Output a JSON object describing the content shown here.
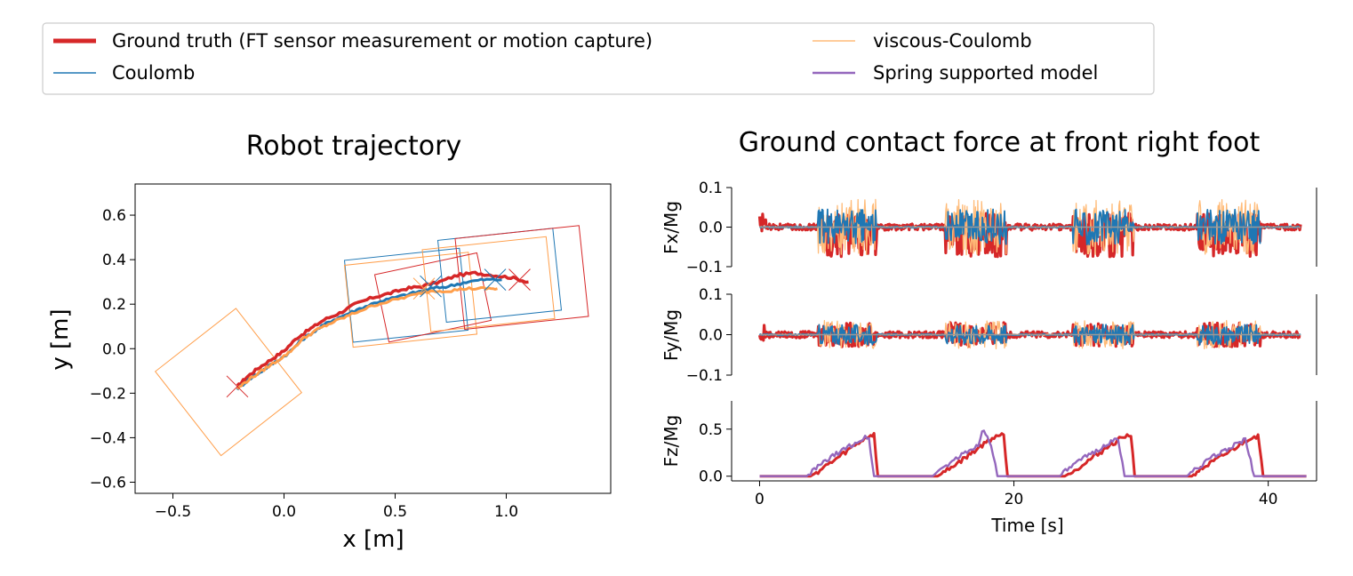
{
  "legend": {
    "entries": [
      {
        "key": "gt",
        "label": "Ground truth (FT sensor measurement or motion capture)",
        "color": "#d62728"
      },
      {
        "key": "coulomb",
        "label": "Coulomb",
        "color": "#1f77b4"
      },
      {
        "key": "vc",
        "label": "viscous-Coulomb",
        "color": "#ffbb78"
      },
      {
        "key": "spring",
        "label": "Spring supported model",
        "color": "#9467bd"
      }
    ]
  },
  "chart_data": [
    {
      "type": "line",
      "title": "Robot trajectory",
      "xlabel": "x [m]",
      "ylabel": "y [m]",
      "xlim": [
        -0.67,
        1.47
      ],
      "ylim": [
        -0.65,
        0.74
      ],
      "xticks": [
        -0.5,
        0.0,
        0.5,
        1.0
      ],
      "xtick_labels": [
        "−0.5",
        "0.0",
        "0.5",
        "1.0"
      ],
      "yticks": [
        -0.6,
        -0.4,
        -0.2,
        0.0,
        0.2,
        0.4,
        0.6
      ],
      "ytick_labels": [
        "−0.6",
        "−0.4",
        "−0.2",
        "0.0",
        "0.2",
        "0.4",
        "0.6"
      ],
      "series": [
        {
          "name": "Ground truth",
          "color": "#d62728",
          "x": [
            -0.21,
            -0.17,
            -0.12,
            -0.06,
            0.0,
            0.06,
            0.12,
            0.18,
            0.25,
            0.32,
            0.4,
            0.48,
            0.55,
            0.62,
            0.7,
            0.78,
            0.86,
            0.94,
            1.02,
            1.1
          ],
          "y": [
            -0.17,
            -0.13,
            -0.09,
            -0.05,
            -0.01,
            0.05,
            0.09,
            0.13,
            0.16,
            0.2,
            0.23,
            0.25,
            0.27,
            0.28,
            0.3,
            0.33,
            0.34,
            0.33,
            0.32,
            0.3
          ]
        },
        {
          "name": "Coulomb",
          "color": "#1f77b4",
          "x": [
            -0.21,
            -0.16,
            -0.1,
            -0.04,
            0.02,
            0.08,
            0.14,
            0.2,
            0.27,
            0.34,
            0.42,
            0.5,
            0.58,
            0.66,
            0.74,
            0.82,
            0.9,
            0.98
          ],
          "y": [
            -0.18,
            -0.14,
            -0.1,
            -0.06,
            -0.02,
            0.04,
            0.08,
            0.12,
            0.15,
            0.18,
            0.21,
            0.23,
            0.25,
            0.27,
            0.28,
            0.3,
            0.31,
            0.31
          ]
        },
        {
          "name": "viscous-Coulomb",
          "color": "#ff9e4a",
          "x": [
            -0.21,
            -0.16,
            -0.1,
            -0.04,
            0.02,
            0.08,
            0.14,
            0.2,
            0.27,
            0.34,
            0.42,
            0.5,
            0.58,
            0.66,
            0.74,
            0.82,
            0.9,
            0.96
          ],
          "y": [
            -0.18,
            -0.14,
            -0.1,
            -0.06,
            -0.02,
            0.04,
            0.08,
            0.11,
            0.14,
            0.17,
            0.2,
            0.22,
            0.24,
            0.26,
            0.26,
            0.27,
            0.27,
            0.27
          ]
        }
      ],
      "footprints": [
        {
          "color": "#ff9e4a",
          "cx": -0.25,
          "cy": -0.15,
          "w": 0.46,
          "h": 0.48,
          "angle_deg": 38
        },
        {
          "color": "#1f77b4",
          "cx": 0.55,
          "cy": 0.24,
          "w": 0.52,
          "h": 0.37,
          "angle_deg": 6
        },
        {
          "color": "#ff9e4a",
          "cx": 0.57,
          "cy": 0.22,
          "w": 0.56,
          "h": 0.37,
          "angle_deg": 6
        },
        {
          "color": "#d62728",
          "cx": 0.67,
          "cy": 0.23,
          "w": 0.47,
          "h": 0.31,
          "angle_deg": 12
        },
        {
          "color": "#1f77b4",
          "cx": 0.97,
          "cy": 0.33,
          "w": 0.52,
          "h": 0.37,
          "angle_deg": 6
        },
        {
          "color": "#ff9e4a",
          "cx": 0.92,
          "cy": 0.29,
          "w": 0.56,
          "h": 0.37,
          "angle_deg": 6
        },
        {
          "color": "#d62728",
          "cx": 1.07,
          "cy": 0.32,
          "w": 0.56,
          "h": 0.41,
          "angle_deg": 6
        }
      ]
    },
    {
      "type": "line",
      "title": "Ground contact force at front right foot",
      "xlabel": "Time [s]",
      "xticks": [
        0,
        20,
        40
      ],
      "xtick_labels": [
        "0",
        "20",
        "40"
      ],
      "xlim": [
        -2.2,
        43.8
      ],
      "stance_intervals": [
        [
          4.6,
          9.2
        ],
        [
          14.6,
          19.4
        ],
        [
          24.6,
          29.4
        ],
        [
          34.4,
          39.4
        ]
      ],
      "panels": [
        {
          "ylabel": "Fx/Mg",
          "ylim": [
            -0.1,
            0.1
          ],
          "yticks": [
            0.1,
            0.0,
            -0.1
          ],
          "ytick_labels": [
            "0.1",
            "0.0",
            "−0.1"
          ]
        },
        {
          "ylabel": "Fy/Mg",
          "ylim": [
            -0.1,
            0.1
          ],
          "yticks": [
            0.1,
            0.0,
            -0.1
          ],
          "ytick_labels": [
            "0.1",
            "0.0",
            "−0.1"
          ]
        },
        {
          "ylabel": "Fz/Mg",
          "ylim": [
            -0.05,
            0.8
          ],
          "yticks": [
            0.5,
            0.0
          ],
          "ytick_labels": [
            "0.5",
            "0.0"
          ]
        }
      ],
      "fz_series": [
        {
          "name": "Ground truth",
          "color": "#d62728",
          "x": [
            0,
            4.0,
            4.6,
            6.0,
            7.5,
            8.6,
            9.0,
            9.3,
            14.0,
            14.6,
            16.0,
            17.5,
            18.6,
            19.2,
            19.5,
            24.0,
            24.6,
            26.0,
            27.5,
            28.6,
            29.2,
            29.5,
            34.0,
            34.4,
            36.0,
            37.5,
            38.6,
            39.2,
            39.6,
            43
          ],
          "y": [
            0.0,
            0.0,
            0.05,
            0.18,
            0.33,
            0.43,
            0.44,
            0.0,
            0.0,
            0.05,
            0.18,
            0.33,
            0.43,
            0.44,
            0.0,
            0.0,
            0.05,
            0.18,
            0.32,
            0.42,
            0.44,
            0.0,
            0.0,
            0.05,
            0.18,
            0.31,
            0.41,
            0.43,
            0.0,
            0.0
          ]
        },
        {
          "name": "Spring supported model",
          "color": "#9467bd",
          "x": [
            0,
            3.7,
            4.3,
            5.6,
            7.2,
            8.3,
            8.6,
            9.0,
            13.6,
            14.2,
            15.6,
            17.2,
            17.5,
            18.2,
            18.7,
            23.6,
            24.2,
            25.6,
            27.2,
            28.2,
            28.7,
            33.6,
            34.2,
            35.6,
            37.2,
            38.2,
            38.9,
            43
          ],
          "y": [
            0.0,
            0.0,
            0.07,
            0.2,
            0.33,
            0.41,
            0.4,
            0.0,
            0.0,
            0.07,
            0.2,
            0.33,
            0.5,
            0.35,
            0.0,
            0.0,
            0.07,
            0.2,
            0.33,
            0.4,
            0.0,
            0.0,
            0.07,
            0.2,
            0.32,
            0.39,
            0.0,
            0.0
          ]
        }
      ]
    }
  ]
}
